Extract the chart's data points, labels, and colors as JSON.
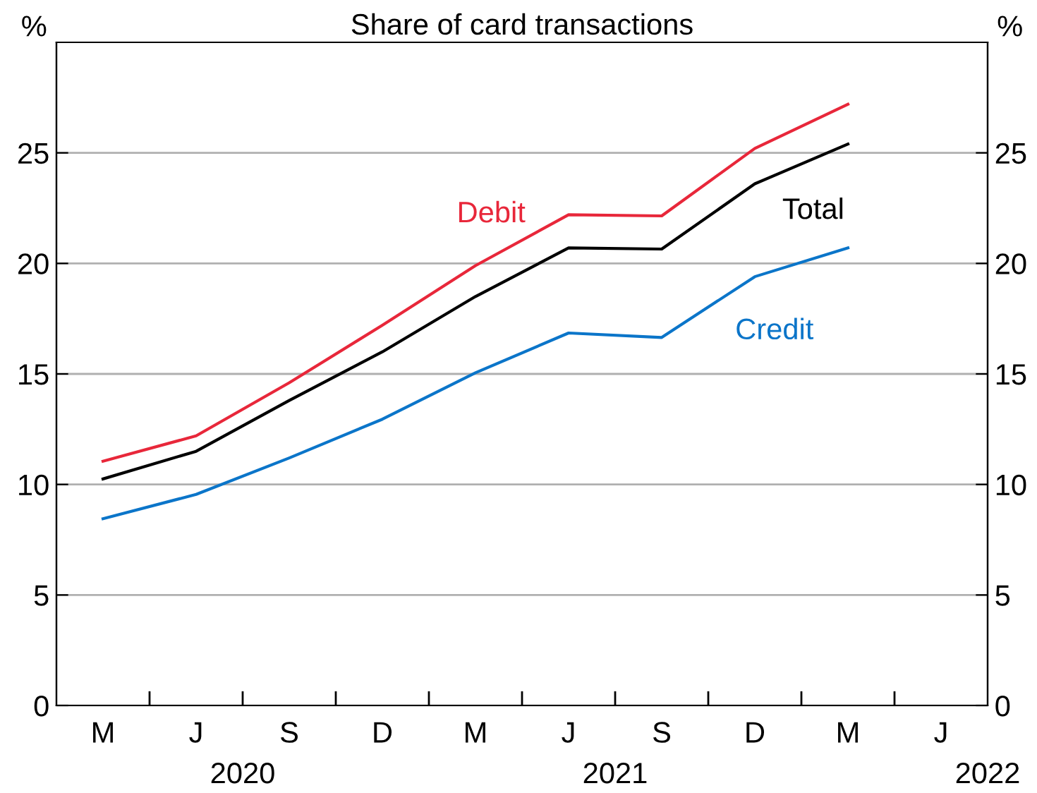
{
  "chart_data": {
    "type": "line",
    "title": "Share of card transactions",
    "categories": [
      "M",
      "J",
      "S",
      "D",
      "M",
      "J",
      "S",
      "D",
      "M",
      "J"
    ],
    "series": [
      {
        "name": "Debit",
        "color": "#e8273a",
        "values": [
          11.05,
          12.2,
          14.6,
          17.2,
          19.9,
          22.2,
          22.15,
          25.2,
          27.2,
          null
        ]
      },
      {
        "name": "Total",
        "color": "#000000",
        "values": [
          10.25,
          11.5,
          13.8,
          16.0,
          18.5,
          20.7,
          20.65,
          23.6,
          25.4,
          null
        ]
      },
      {
        "name": "Credit",
        "color": "#0b75c9",
        "values": [
          8.45,
          9.55,
          11.2,
          12.95,
          15.05,
          16.85,
          16.65,
          19.4,
          20.7,
          null
        ]
      }
    ],
    "ylabel": "%",
    "y2label": "%",
    "ylim": [
      0,
      30
    ],
    "yticks": [
      0,
      5,
      10,
      15,
      20,
      25
    ],
    "y2lim": [
      0,
      30
    ],
    "y2ticks": [
      0,
      5,
      10,
      15,
      20,
      25
    ],
    "annotations": [
      "2020",
      "2021",
      "2022"
    ],
    "grid": "y",
    "legend": false,
    "marker": "none",
    "line_style": "solid"
  }
}
